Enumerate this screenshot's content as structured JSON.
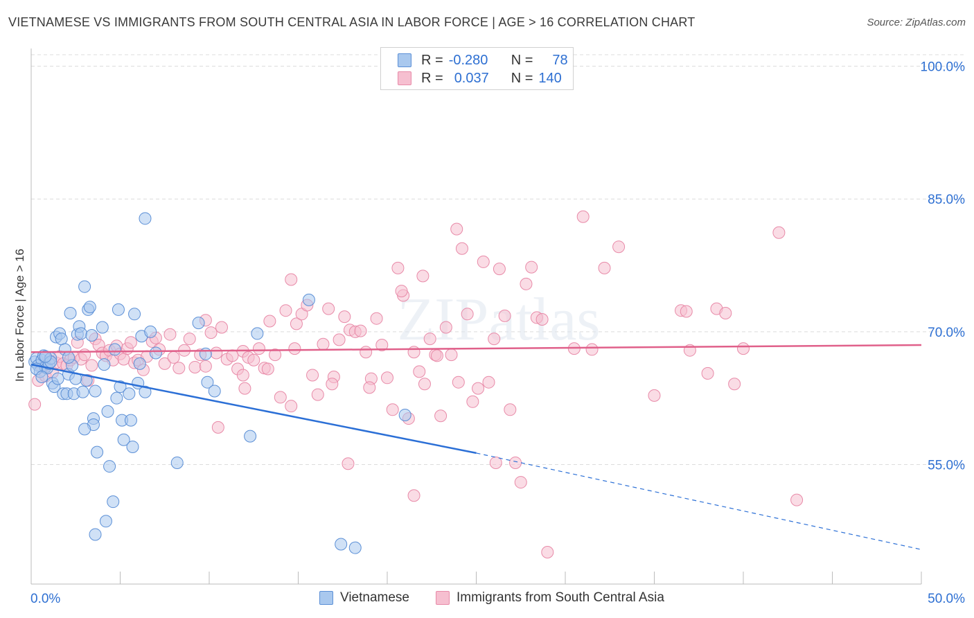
{
  "title": "VIETNAMESE VS IMMIGRANTS FROM SOUTH CENTRAL ASIA IN LABOR FORCE | AGE > 16 CORRELATION CHART",
  "source": "Source: ZipAtlas.com",
  "watermark": "ZIPatlas",
  "legend": {
    "row1": {
      "r_label": "R =",
      "r_value": "-0.280",
      "n_label": "N =",
      "n_value": "78"
    },
    "row2": {
      "r_label": "R =",
      "r_value": "0.037",
      "n_label": "N =",
      "n_value": "140"
    }
  },
  "colors": {
    "blue_fill": "#a9c8ee",
    "blue_stroke": "#5b8fd6",
    "blue_line": "#2b6fd6",
    "pink_fill": "#f6bfd0",
    "pink_stroke": "#e88aa8",
    "pink_line": "#e0608a",
    "axis_label": "#2d6fd2",
    "grid": "#dcdcdc"
  },
  "chart_data": {
    "type": "scatter",
    "title": "VIETNAMESE VS IMMIGRANTS FROM SOUTH CENTRAL ASIA IN LABOR FORCE | AGE > 16 CORRELATION CHART",
    "xlabel": "",
    "ylabel": "In Labor Force | Age > 16",
    "xlim": [
      0,
      50
    ],
    "ylim": [
      41.5,
      102
    ],
    "x_tick_labels": [
      "0.0%",
      "50.0%"
    ],
    "y_ticks": [
      55,
      70,
      85,
      100
    ],
    "y_tick_labels": [
      "55.0%",
      "70.0%",
      "85.0%",
      "100.0%"
    ],
    "grid": true,
    "legend_position": "top-center",
    "series": [
      {
        "name": "Vietnamese",
        "color": "#a9c8ee",
        "trend": {
          "x0": 0,
          "y0": 66.3,
          "x1": 25,
          "y1": 56.3,
          "dash_to_x": 50,
          "dash_to_y": 45.4
        },
        "points": [
          [
            0.2,
            66.6
          ],
          [
            0.3,
            67.0
          ],
          [
            0.4,
            66.2
          ],
          [
            0.5,
            65.5
          ],
          [
            0.6,
            66.8
          ],
          [
            0.7,
            67.3
          ],
          [
            0.8,
            66.0
          ],
          [
            0.9,
            65.9
          ],
          [
            1.0,
            66.4
          ],
          [
            1.1,
            67.0
          ],
          [
            0.3,
            65.8
          ],
          [
            0.6,
            64.9
          ],
          [
            1.2,
            64.2
          ],
          [
            1.3,
            63.8
          ],
          [
            1.4,
            69.4
          ],
          [
            1.6,
            69.8
          ],
          [
            1.7,
            69.2
          ],
          [
            1.8,
            63.0
          ],
          [
            2.0,
            63.0
          ],
          [
            2.1,
            65.2
          ],
          [
            2.2,
            72.1
          ],
          [
            2.4,
            63.0
          ],
          [
            2.6,
            69.7
          ],
          [
            2.7,
            70.6
          ],
          [
            2.8,
            69.8
          ],
          [
            2.9,
            63.2
          ],
          [
            3.0,
            75.1
          ],
          [
            3.1,
            64.5
          ],
          [
            3.2,
            72.5
          ],
          [
            3.3,
            72.8
          ],
          [
            3.4,
            69.6
          ],
          [
            3.5,
            60.2
          ],
          [
            3.5,
            59.5
          ],
          [
            3.6,
            63.3
          ],
          [
            3.7,
            56.4
          ],
          [
            3.0,
            59.0
          ],
          [
            4.0,
            70.5
          ],
          [
            4.1,
            66.3
          ],
          [
            4.3,
            61.0
          ],
          [
            4.4,
            54.8
          ],
          [
            4.6,
            50.8
          ],
          [
            4.2,
            48.6
          ],
          [
            3.6,
            47.1
          ],
          [
            4.8,
            62.5
          ],
          [
            4.9,
            72.5
          ],
          [
            5.0,
            63.8
          ],
          [
            5.1,
            60.0
          ],
          [
            5.2,
            57.8
          ],
          [
            5.5,
            63.0
          ],
          [
            5.6,
            60.0
          ],
          [
            5.7,
            57.0
          ],
          [
            5.8,
            72.0
          ],
          [
            6.0,
            64.2
          ],
          [
            6.1,
            66.4
          ],
          [
            6.2,
            69.5
          ],
          [
            6.4,
            63.2
          ],
          [
            6.7,
            70.0
          ],
          [
            7.0,
            67.6
          ],
          [
            8.2,
            55.2
          ],
          [
            9.4,
            71.0
          ],
          [
            9.8,
            67.5
          ],
          [
            9.9,
            64.3
          ],
          [
            10.3,
            63.3
          ],
          [
            12.3,
            58.2
          ],
          [
            12.7,
            69.8
          ],
          [
            15.6,
            73.6
          ],
          [
            17.4,
            46.0
          ],
          [
            18.2,
            45.6
          ],
          [
            21.0,
            60.6
          ],
          [
            6.4,
            82.8
          ],
          [
            1.1,
            66.6
          ],
          [
            2.3,
            66.2
          ],
          [
            1.5,
            64.7
          ],
          [
            2.5,
            64.7
          ],
          [
            0.8,
            67.2
          ],
          [
            1.9,
            68.0
          ],
          [
            2.1,
            67.1
          ],
          [
            4.7,
            68.0
          ]
        ]
      },
      {
        "name": "Immigrants from South Central Asia",
        "color": "#f6bfd0",
        "trend": {
          "x0": 0,
          "y0": 67.7,
          "x1": 50,
          "y1": 68.5
        },
        "points": [
          [
            0.2,
            61.8
          ],
          [
            0.4,
            64.5
          ],
          [
            0.6,
            66.0
          ],
          [
            0.8,
            65.0
          ],
          [
            1.0,
            66.8
          ],
          [
            1.2,
            65.4
          ],
          [
            1.4,
            66.5
          ],
          [
            1.6,
            67.2
          ],
          [
            1.8,
            66.4
          ],
          [
            2.0,
            66.2
          ],
          [
            2.2,
            66.8
          ],
          [
            2.4,
            67.1
          ],
          [
            2.6,
            68.8
          ],
          [
            2.8,
            66.9
          ],
          [
            3.0,
            67.4
          ],
          [
            3.2,
            64.5
          ],
          [
            3.4,
            66.2
          ],
          [
            3.6,
            69.2
          ],
          [
            3.8,
            68.5
          ],
          [
            4.0,
            67.6
          ],
          [
            4.2,
            67.3
          ],
          [
            4.4,
            67.9
          ],
          [
            4.6,
            66.8
          ],
          [
            4.8,
            68.4
          ],
          [
            5.0,
            67.5
          ],
          [
            5.2,
            66.9
          ],
          [
            5.4,
            68.1
          ],
          [
            5.6,
            68.8
          ],
          [
            5.8,
            66.5
          ],
          [
            6.0,
            66.8
          ],
          [
            6.3,
            65.7
          ],
          [
            6.5,
            67.2
          ],
          [
            6.8,
            68.9
          ],
          [
            7.0,
            69.3
          ],
          [
            7.2,
            68.0
          ],
          [
            7.5,
            66.4
          ],
          [
            7.8,
            69.7
          ],
          [
            8.0,
            67.1
          ],
          [
            8.3,
            65.9
          ],
          [
            8.6,
            67.9
          ],
          [
            8.9,
            69.2
          ],
          [
            9.2,
            66.0
          ],
          [
            9.5,
            67.4
          ],
          [
            9.8,
            66.1
          ],
          [
            10.1,
            69.9
          ],
          [
            10.4,
            67.6
          ],
          [
            10.7,
            70.5
          ],
          [
            11.0,
            66.9
          ],
          [
            11.3,
            67.3
          ],
          [
            11.6,
            65.8
          ],
          [
            11.9,
            67.8
          ],
          [
            12.2,
            67.1
          ],
          [
            12.5,
            66.8
          ],
          [
            12.8,
            68.1
          ],
          [
            13.1,
            65.9
          ],
          [
            13.4,
            71.2
          ],
          [
            13.7,
            67.4
          ],
          [
            14.0,
            62.6
          ],
          [
            14.3,
            72.4
          ],
          [
            14.6,
            61.6
          ],
          [
            14.9,
            70.9
          ],
          [
            15.2,
            72.0
          ],
          [
            15.5,
            73.0
          ],
          [
            15.8,
            65.1
          ],
          [
            16.1,
            62.9
          ],
          [
            16.4,
            68.6
          ],
          [
            16.7,
            72.6
          ],
          [
            17.0,
            64.9
          ],
          [
            17.3,
            69.1
          ],
          [
            17.6,
            71.7
          ],
          [
            17.9,
            70.2
          ],
          [
            18.2,
            70.0
          ],
          [
            18.5,
            70.1
          ],
          [
            18.8,
            67.7
          ],
          [
            19.1,
            64.7
          ],
          [
            19.4,
            71.5
          ],
          [
            19.7,
            68.5
          ],
          [
            20.0,
            64.8
          ],
          [
            20.3,
            61.2
          ],
          [
            20.6,
            77.2
          ],
          [
            20.9,
            74.1
          ],
          [
            21.2,
            60.2
          ],
          [
            21.5,
            67.7
          ],
          [
            21.8,
            65.5
          ],
          [
            22.1,
            64.1
          ],
          [
            22.4,
            69.2
          ],
          [
            22.7,
            67.4
          ],
          [
            23.0,
            60.5
          ],
          [
            23.3,
            70.5
          ],
          [
            23.6,
            67.4
          ],
          [
            23.9,
            81.6
          ],
          [
            24.2,
            79.4
          ],
          [
            24.5,
            72.0
          ],
          [
            24.8,
            62.1
          ],
          [
            25.1,
            63.6
          ],
          [
            25.4,
            77.9
          ],
          [
            25.7,
            64.3
          ],
          [
            26.0,
            69.2
          ],
          [
            26.3,
            77.1
          ],
          [
            26.6,
            71.8
          ],
          [
            26.9,
            61.2
          ],
          [
            27.2,
            55.2
          ],
          [
            27.5,
            53.0
          ],
          [
            27.8,
            75.4
          ],
          [
            28.1,
            77.3
          ],
          [
            28.4,
            71.6
          ],
          [
            28.7,
            71.4
          ],
          [
            29.0,
            45.1
          ],
          [
            31.0,
            83.0
          ],
          [
            31.5,
            68.0
          ],
          [
            32.2,
            77.2
          ],
          [
            33.0,
            79.6
          ],
          [
            35.0,
            62.8
          ],
          [
            36.5,
            72.4
          ],
          [
            36.8,
            72.3
          ],
          [
            37.0,
            67.9
          ],
          [
            38.0,
            65.3
          ],
          [
            38.5,
            72.6
          ],
          [
            39.0,
            72.1
          ],
          [
            39.5,
            64.1
          ],
          [
            40.0,
            68.1
          ],
          [
            42.0,
            81.2
          ],
          [
            43.0,
            51.0
          ],
          [
            30.5,
            68.1
          ],
          [
            22.0,
            76.3
          ],
          [
            19.0,
            63.7
          ],
          [
            16.9,
            64.1
          ],
          [
            20.8,
            74.6
          ],
          [
            12.0,
            63.6
          ],
          [
            14.6,
            75.9
          ],
          [
            9.8,
            71.3
          ],
          [
            10.5,
            59.2
          ],
          [
            11.9,
            65.1
          ],
          [
            13.3,
            65.8
          ],
          [
            17.8,
            55.1
          ],
          [
            21.5,
            51.5
          ],
          [
            26.1,
            55.2
          ],
          [
            22.8,
            67.3
          ],
          [
            24.0,
            64.3
          ],
          [
            14.8,
            68.1
          ]
        ]
      }
    ]
  },
  "bottom_legend": {
    "item1": "Vietnamese",
    "item2": "Immigrants from South Central Asia"
  }
}
